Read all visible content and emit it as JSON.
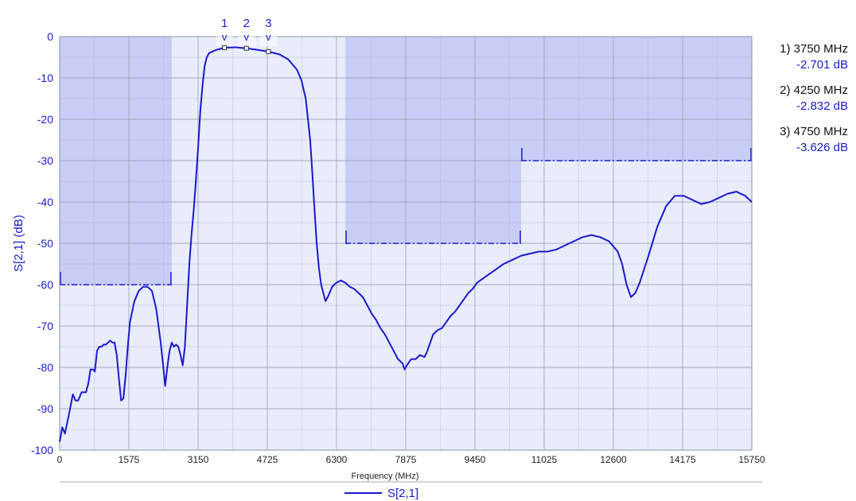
{
  "chart_data": {
    "type": "line",
    "title": "",
    "xlabel": "Frequency (MHz)",
    "ylabel": "S[2,1] (dB)",
    "xlim": [
      0,
      15750
    ],
    "ylim": [
      -100,
      0
    ],
    "x_ticks": [
      "0",
      "1575",
      "3150",
      "4725",
      "6300",
      "7875",
      "9450",
      "11025",
      "12600",
      "14175",
      "15750"
    ],
    "y_ticks": [
      "0",
      "-10",
      "-20",
      "-30",
      "-40",
      "-50",
      "-60",
      "-70",
      "-80",
      "-90",
      "-100"
    ],
    "grid": true,
    "legend": "bottom-center",
    "series": [
      {
        "name": "S[2,1]",
        "color": "#1a1acc",
        "points": [
          [
            0,
            -98
          ],
          [
            60,
            -94.5
          ],
          [
            120,
            -96
          ],
          [
            200,
            -92
          ],
          [
            300,
            -86.5
          ],
          [
            360,
            -88
          ],
          [
            420,
            -88
          ],
          [
            500,
            -86
          ],
          [
            600,
            -86
          ],
          [
            650,
            -84
          ],
          [
            700,
            -80.5
          ],
          [
            760,
            -80.5
          ],
          [
            800,
            -81
          ],
          [
            850,
            -76
          ],
          [
            900,
            -75
          ],
          [
            950,
            -75
          ],
          [
            1000,
            -74.5
          ],
          [
            1050,
            -74.5
          ],
          [
            1100,
            -74
          ],
          [
            1150,
            -73.5
          ],
          [
            1200,
            -74
          ],
          [
            1250,
            -74
          ],
          [
            1300,
            -77
          ],
          [
            1350,
            -83
          ],
          [
            1400,
            -88
          ],
          [
            1450,
            -87.5
          ],
          [
            1500,
            -82
          ],
          [
            1550,
            -75
          ],
          [
            1600,
            -69
          ],
          [
            1700,
            -64
          ],
          [
            1800,
            -61.5
          ],
          [
            1900,
            -60.5
          ],
          [
            2000,
            -60.5
          ],
          [
            2100,
            -61.5
          ],
          [
            2200,
            -66
          ],
          [
            2300,
            -74
          ],
          [
            2350,
            -79
          ],
          [
            2400,
            -84.5
          ],
          [
            2450,
            -80
          ],
          [
            2500,
            -76
          ],
          [
            2550,
            -74
          ],
          [
            2600,
            -75
          ],
          [
            2650,
            -74.5
          ],
          [
            2700,
            -75
          ],
          [
            2750,
            -77
          ],
          [
            2800,
            -79.5
          ],
          [
            2850,
            -75
          ],
          [
            2900,
            -65
          ],
          [
            2950,
            -55
          ],
          [
            3000,
            -48
          ],
          [
            3050,
            -42
          ],
          [
            3100,
            -35
          ],
          [
            3150,
            -27
          ],
          [
            3200,
            -18
          ],
          [
            3250,
            -12
          ],
          [
            3300,
            -7
          ],
          [
            3350,
            -5
          ],
          [
            3400,
            -4
          ],
          [
            3500,
            -3.5
          ],
          [
            3600,
            -3.1
          ],
          [
            3750,
            -2.7
          ],
          [
            4000,
            -2.6
          ],
          [
            4250,
            -2.83
          ],
          [
            4500,
            -3.2
          ],
          [
            4750,
            -3.63
          ],
          [
            5000,
            -4.3
          ],
          [
            5200,
            -5.5
          ],
          [
            5400,
            -8
          ],
          [
            5500,
            -10.5
          ],
          [
            5600,
            -15
          ],
          [
            5700,
            -25
          ],
          [
            5750,
            -33
          ],
          [
            5800,
            -42
          ],
          [
            5850,
            -50
          ],
          [
            5900,
            -56
          ],
          [
            5950,
            -60
          ],
          [
            6000,
            -62
          ],
          [
            6050,
            -64
          ],
          [
            6100,
            -63
          ],
          [
            6200,
            -60.5
          ],
          [
            6300,
            -59.5
          ],
          [
            6400,
            -59
          ],
          [
            6500,
            -59.5
          ],
          [
            6600,
            -60.5
          ],
          [
            6700,
            -61
          ],
          [
            6800,
            -62
          ],
          [
            6900,
            -63
          ],
          [
            7000,
            -65
          ],
          [
            7100,
            -67
          ],
          [
            7200,
            -68.5
          ],
          [
            7300,
            -70.5
          ],
          [
            7400,
            -72
          ],
          [
            7500,
            -74
          ],
          [
            7600,
            -76
          ],
          [
            7700,
            -78
          ],
          [
            7800,
            -79
          ],
          [
            7850,
            -80.5
          ],
          [
            7900,
            -79.5
          ],
          [
            8000,
            -78
          ],
          [
            8100,
            -78
          ],
          [
            8200,
            -77
          ],
          [
            8300,
            -77.5
          ],
          [
            8350,
            -76.5
          ],
          [
            8400,
            -75
          ],
          [
            8500,
            -72
          ],
          [
            8600,
            -71
          ],
          [
            8700,
            -70.5
          ],
          [
            8800,
            -69
          ],
          [
            8900,
            -67.5
          ],
          [
            9000,
            -66.5
          ],
          [
            9100,
            -65
          ],
          [
            9200,
            -63.5
          ],
          [
            9300,
            -62
          ],
          [
            9400,
            -61
          ],
          [
            9500,
            -59.5
          ],
          [
            9700,
            -58
          ],
          [
            9900,
            -56.5
          ],
          [
            10100,
            -55
          ],
          [
            10300,
            -54
          ],
          [
            10500,
            -53
          ],
          [
            10700,
            -52.5
          ],
          [
            10900,
            -52
          ],
          [
            11100,
            -52
          ],
          [
            11300,
            -51.5
          ],
          [
            11500,
            -50.5
          ],
          [
            11700,
            -49.5
          ],
          [
            11900,
            -48.5
          ],
          [
            12100,
            -48
          ],
          [
            12300,
            -48.5
          ],
          [
            12500,
            -49.5
          ],
          [
            12700,
            -52
          ],
          [
            12800,
            -55
          ],
          [
            12900,
            -60
          ],
          [
            13000,
            -63
          ],
          [
            13100,
            -62
          ],
          [
            13200,
            -59.5
          ],
          [
            13400,
            -53
          ],
          [
            13600,
            -46
          ],
          [
            13800,
            -41
          ],
          [
            14000,
            -38.5
          ],
          [
            14200,
            -38.5
          ],
          [
            14400,
            -39.5
          ],
          [
            14600,
            -40.5
          ],
          [
            14800,
            -40
          ],
          [
            15000,
            -39
          ],
          [
            15200,
            -38
          ],
          [
            15400,
            -37.5
          ],
          [
            15600,
            -38.5
          ],
          [
            15750,
            -40
          ]
        ]
      }
    ],
    "mask_regions": [
      {
        "x": [
          0,
          2550
        ],
        "y": [
          -60,
          0
        ]
      },
      {
        "x": [
          6500,
          10500
        ],
        "y": [
          -50,
          0
        ]
      },
      {
        "x": [
          10500,
          15750
        ],
        "y": [
          -30,
          0
        ]
      }
    ],
    "mask_lines": [
      {
        "x": [
          0,
          2550
        ],
        "y": -60
      },
      {
        "x": [
          6500,
          10500
        ],
        "y": -50
      },
      {
        "x": [
          10500,
          15750
        ],
        "y": -30
      }
    ],
    "markers": [
      {
        "label": "1",
        "x": 3750,
        "y": -2.701,
        "freq_text": "1) 3750 MHz",
        "value_text": "-2.701 dB"
      },
      {
        "label": "2",
        "x": 4250,
        "y": -2.832,
        "freq_text": "2) 4250 MHz",
        "value_text": "-2.832 dB"
      },
      {
        "label": "3",
        "x": 4750,
        "y": -3.626,
        "freq_text": "3) 4750 MHz",
        "value_text": "-3.626 dB"
      }
    ],
    "colors": {
      "plot_background": "#e8ecfb",
      "mask_fill": "#c8cdf5",
      "grid": "#9aa0b8",
      "trace": "#1a1acc"
    }
  }
}
